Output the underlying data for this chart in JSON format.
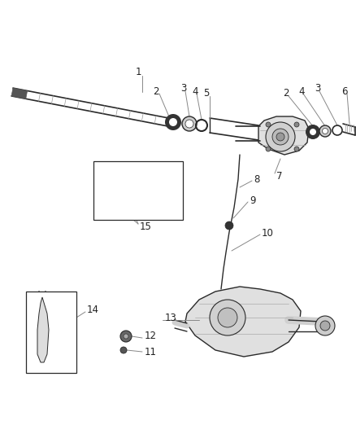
{
  "background_color": "#ffffff",
  "line_color": "#2a2a2a",
  "leader_color": "#888888",
  "label_color": "#222222",
  "fig_width": 4.38,
  "fig_height": 5.33,
  "dpi": 100,
  "label_fontsize": 8.5
}
